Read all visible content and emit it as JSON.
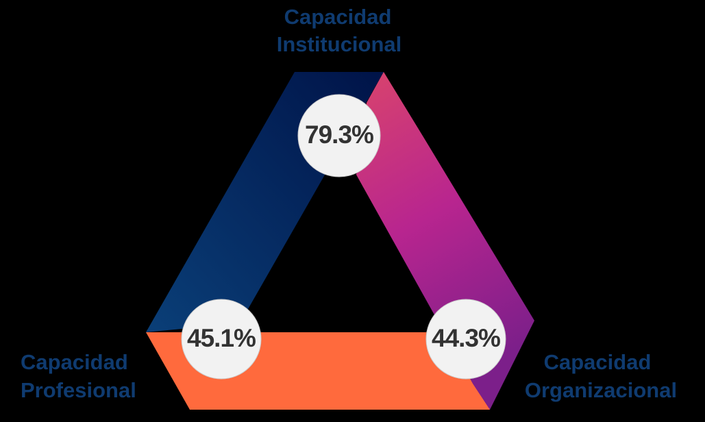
{
  "nodes": [
    {
      "label_lines": [
        "Capacidad",
        "Institucional"
      ],
      "value": "79.3%"
    },
    {
      "label_lines": [
        "Capacidad",
        "Profesional"
      ],
      "value": "45.1%"
    },
    {
      "label_lines": [
        "Capacidad",
        "Organizacional"
      ],
      "value": "44.3%"
    }
  ]
}
